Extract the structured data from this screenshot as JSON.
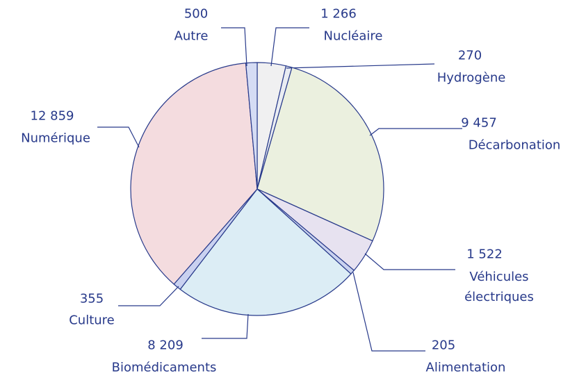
{
  "chart_data": {
    "type": "pie",
    "categories": [
      "Nucléaire",
      "Hydrogène",
      "Décarbonation",
      "Véhicules électriques",
      "Alimentation",
      "Biomédicaments",
      "Culture",
      "Numérique",
      "Autre"
    ],
    "values": [
      1266,
      270,
      9457,
      1522,
      205,
      8209,
      355,
      12859,
      500
    ],
    "value_labels": [
      "1 266",
      "270",
      "9 457",
      "1 522",
      "205",
      "8 209",
      "355",
      "12 859",
      "500"
    ],
    "colors": [
      "#f0f0f1",
      "#e9ecf2",
      "#ebf0df",
      "#e7e2f0",
      "#c9d2ef",
      "#dcedf5",
      "#c9d1f0",
      "#f4dcdf",
      "#d5dcf4"
    ]
  }
}
